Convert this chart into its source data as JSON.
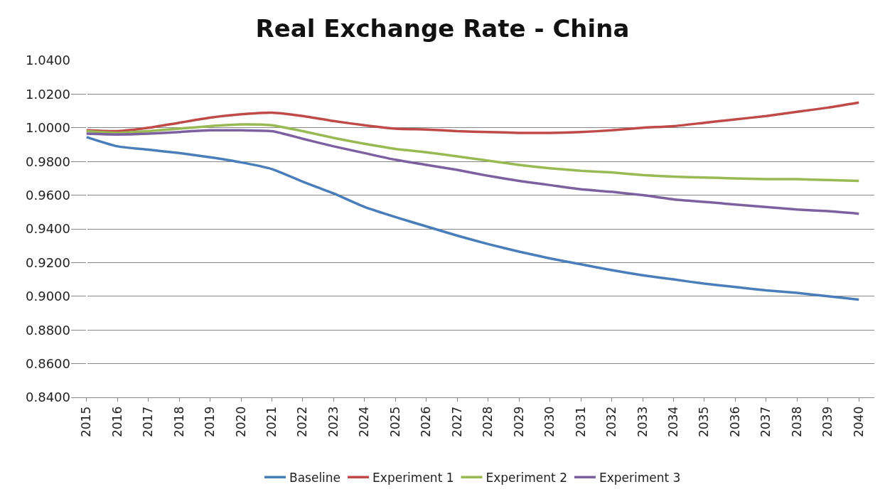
{
  "chart_data": {
    "type": "line",
    "title": "Real Exchange Rate - China",
    "categories": [
      "2015",
      "2016",
      "2017",
      "2018",
      "2019",
      "2020",
      "2021",
      "2022",
      "2023",
      "2024",
      "2025",
      "2026",
      "2027",
      "2028",
      "2029",
      "2030",
      "2031",
      "2032",
      "2033",
      "2034",
      "2035",
      "2036",
      "2037",
      "2038",
      "2039",
      "2040"
    ],
    "series": [
      {
        "name": "Baseline",
        "color": "#4a7ebb",
        "values": [
          0.9945,
          0.989,
          0.987,
          0.985,
          0.9825,
          0.9795,
          0.9755,
          0.968,
          0.961,
          0.953,
          0.947,
          0.9415,
          0.936,
          0.931,
          0.9265,
          0.9225,
          0.919,
          0.9155,
          0.9125,
          0.91,
          0.9075,
          0.9055,
          0.9035,
          0.902,
          0.9,
          0.898
        ]
      },
      {
        "name": "Experiment 1",
        "color": "#be4b48",
        "values": [
          0.9985,
          0.998,
          1.0,
          1.003,
          1.006,
          1.008,
          1.009,
          1.007,
          1.004,
          1.0015,
          0.9995,
          0.999,
          0.998,
          0.9975,
          0.997,
          0.997,
          0.9975,
          0.9985,
          1.0,
          1.001,
          1.003,
          1.005,
          1.007,
          1.0095,
          1.012,
          1.015
        ]
      },
      {
        "name": "Experiment 2",
        "color": "#98b954",
        "values": [
          0.998,
          0.997,
          0.998,
          0.9995,
          1.001,
          1.002,
          1.0015,
          0.998,
          0.994,
          0.9905,
          0.9875,
          0.9855,
          0.983,
          0.9805,
          0.978,
          0.976,
          0.9745,
          0.9735,
          0.972,
          0.971,
          0.9705,
          0.97,
          0.9695,
          0.9695,
          0.969,
          0.9685
        ]
      },
      {
        "name": "Experiment 3",
        "color": "#7d60a0",
        "values": [
          0.9965,
          0.996,
          0.9965,
          0.9975,
          0.9985,
          0.9985,
          0.998,
          0.9935,
          0.989,
          0.985,
          0.981,
          0.978,
          0.975,
          0.9715,
          0.9685,
          0.966,
          0.9635,
          0.962,
          0.96,
          0.9575,
          0.956,
          0.9545,
          0.953,
          0.9515,
          0.9505,
          0.949
        ]
      }
    ],
    "ylim": [
      0.84,
      1.04
    ],
    "yticks": [
      {
        "value": 0.84,
        "label": "0.8400"
      },
      {
        "value": 0.86,
        "label": "0.8600"
      },
      {
        "value": 0.88,
        "label": "0.8800"
      },
      {
        "value": 0.9,
        "label": "0.9000"
      },
      {
        "value": 0.92,
        "label": "0.9200"
      },
      {
        "value": 0.94,
        "label": "0.9400"
      },
      {
        "value": 0.96,
        "label": "0.9600"
      },
      {
        "value": 0.98,
        "label": "0.9800"
      },
      {
        "value": 1.0,
        "label": "1.0000"
      },
      {
        "value": 1.02,
        "label": "1.0200"
      },
      {
        "value": 1.04,
        "label": "1.0400"
      }
    ],
    "grid": "y",
    "legend": "bottom",
    "marker": "none",
    "line_style": "solid"
  }
}
